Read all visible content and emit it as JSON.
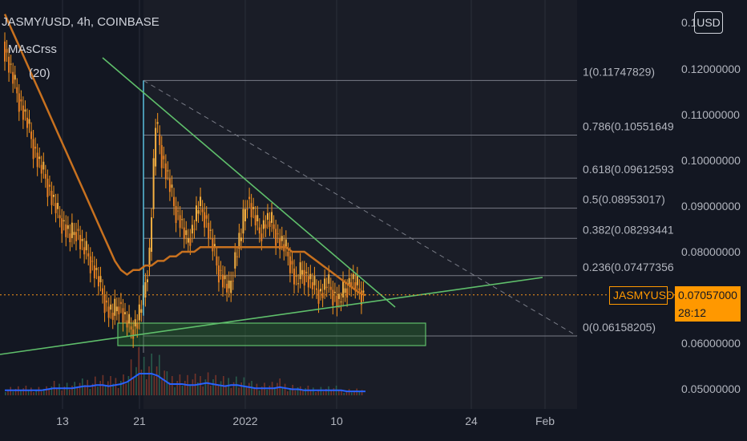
{
  "header": {
    "title": "JASMY/USD, 4h, COINBASE",
    "indicator_1": "MAsCrss",
    "indicator_2": "(20)"
  },
  "currency_button": "USD",
  "last_price": {
    "symbol": "JASMYUSD",
    "value": "0.07057000",
    "countdown": "28:12",
    "color": "#ff9800"
  },
  "colors": {
    "background": "#131722",
    "grid": "#2a2e39",
    "candle": "#f7931a",
    "ma": "#c8711f",
    "trendline": "#5fbf6b",
    "fib": "#787b86",
    "zone_fill": "#2e7d32",
    "volume_ma": "#2962ff"
  },
  "chart_data": {
    "type": "candlestick",
    "title": "JASMY/USD, 4h, COINBASE",
    "x_ticks": [
      "13",
      "21",
      "2022",
      "10",
      "24",
      "Feb"
    ],
    "y_ticks": [
      "0.12000000",
      "0.11000000",
      "0.10000000",
      "0.09000000",
      "0.08000000",
      "0.06000000",
      "0.05000000"
    ],
    "y_top_partial": "0.1",
    "ylim": [
      0.045,
      0.135
    ],
    "fibonacci_retracement": {
      "high": 0.11747829,
      "low": 0.06158205,
      "levels": [
        {
          "label": "1(0.11747829)",
          "value": 0.11747829
        },
        {
          "label": "0.786(0.10551649",
          "value": 0.10551649
        },
        {
          "label": "0.618(0.09612593",
          "value": 0.09612593
        },
        {
          "label": "0.5(0.08953017)",
          "value": 0.08953017
        },
        {
          "label": "0.382(0.08293441",
          "value": 0.08293441
        },
        {
          "label": "0.236(0.07477356",
          "value": 0.07477356
        },
        {
          "label": "0(0.06158205)",
          "value": 0.06158205
        }
      ]
    },
    "price_path_close": [
      0.126,
      0.121,
      0.116,
      0.112,
      0.108,
      0.103,
      0.099,
      0.096,
      0.092,
      0.088,
      0.086,
      0.083,
      0.085,
      0.081,
      0.079,
      0.076,
      0.072,
      0.068,
      0.066,
      0.069,
      0.065,
      0.063,
      0.065,
      0.07,
      0.08,
      0.108,
      0.101,
      0.096,
      0.09,
      0.087,
      0.082,
      0.085,
      0.09,
      0.088,
      0.083,
      0.077,
      0.074,
      0.071,
      0.079,
      0.084,
      0.092,
      0.088,
      0.084,
      0.087,
      0.086,
      0.083,
      0.081,
      0.078,
      0.073,
      0.076,
      0.074,
      0.072,
      0.071,
      0.073,
      0.071,
      0.069,
      0.072,
      0.074,
      0.072,
      0.0706
    ],
    "moving_average": [
      0.132,
      0.129,
      0.126,
      0.123,
      0.12,
      0.117,
      0.114,
      0.111,
      0.108,
      0.105,
      0.102,
      0.099,
      0.096,
      0.093,
      0.09,
      0.087,
      0.084,
      0.081,
      0.078,
      0.076,
      0.075,
      0.076,
      0.076,
      0.077,
      0.077,
      0.078,
      0.078,
      0.079,
      0.079,
      0.08,
      0.08,
      0.08,
      0.081,
      0.081,
      0.081,
      0.081,
      0.081,
      0.081,
      0.081,
      0.081,
      0.081,
      0.081,
      0.081,
      0.081,
      0.081,
      0.081,
      0.081,
      0.08,
      0.08,
      0.08,
      0.079,
      0.078,
      0.077,
      0.076,
      0.075,
      0.074,
      0.073,
      0.072,
      0.071,
      0.0705
    ],
    "volume_ma": [
      0.2,
      0.2,
      0.2,
      0.2,
      0.2,
      0.2,
      0.2,
      0.25,
      0.3,
      0.3,
      0.3,
      0.3,
      0.35,
      0.4,
      0.4,
      0.45,
      0.45,
      0.4,
      0.45,
      0.5,
      0.6,
      0.8,
      1.0,
      1.0,
      1.0,
      0.9,
      0.7,
      0.5,
      0.5,
      0.5,
      0.45,
      0.45,
      0.5,
      0.55,
      0.5,
      0.45,
      0.4,
      0.45,
      0.45,
      0.4,
      0.35,
      0.3,
      0.3,
      0.3,
      0.3,
      0.35,
      0.3,
      0.25,
      0.25,
      0.2,
      0.2,
      0.2,
      0.2,
      0.2,
      0.2,
      0.2,
      0.15,
      0.15,
      0.15,
      0.15
    ]
  }
}
